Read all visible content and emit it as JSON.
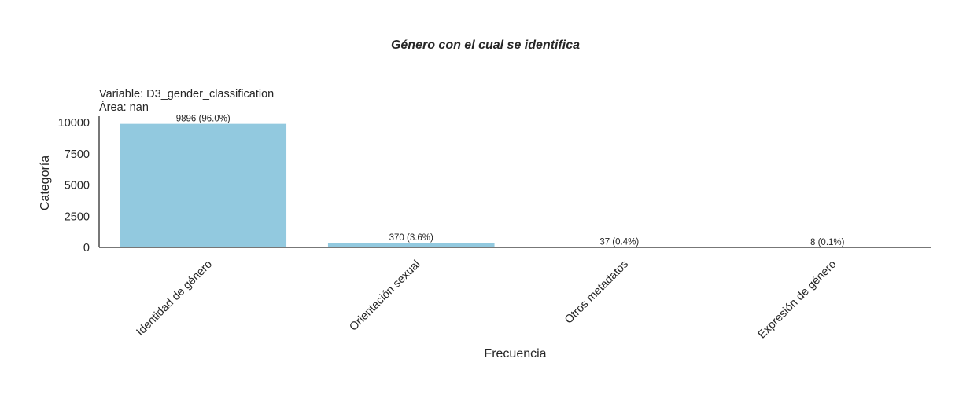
{
  "chart_data": {
    "type": "bar",
    "title": "Género con el cual se identifica",
    "subtitle_lines": [
      "Variable: D3_gender_classification",
      "Área: nan"
    ],
    "xlabel": "Frecuencia",
    "ylabel": "Categoría",
    "categories": [
      "Identidad de género",
      "Orientación sexual",
      "Otros metadatos",
      "Expresión de género"
    ],
    "values": [
      9896,
      370,
      37,
      8
    ],
    "value_labels": [
      "9896 (96.0%)",
      "370 (3.6%)",
      "37 (0.4%)",
      "8 (0.1%)"
    ],
    "yticks": [
      0,
      2500,
      5000,
      7500,
      10000
    ],
    "ylim": [
      0,
      10400
    ],
    "bar_color": "#92c9df",
    "grid": false,
    "legend": "none"
  }
}
